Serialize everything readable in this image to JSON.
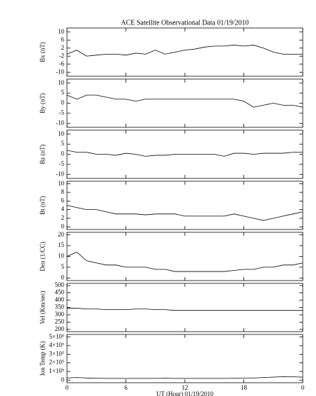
{
  "chart_data": [
    {
      "type": "line",
      "title": "ACE Satellite Observational Data  01/19/2010",
      "ylabel": "Bx (nT)",
      "x": [
        0,
        1,
        2,
        3,
        4,
        5,
        6,
        7,
        8,
        9,
        10,
        11,
        12,
        13,
        14,
        15,
        16,
        17,
        18,
        19,
        20,
        21,
        22,
        23,
        24
      ],
      "series": [
        {
          "color": "#000000",
          "values": [
            -1,
            1,
            -2,
            -1.5,
            -1,
            -1,
            -1.5,
            -0.5,
            -1,
            1,
            -1,
            0,
            1,
            1.5,
            2.5,
            3,
            3,
            3.5,
            3,
            3.5,
            2,
            0,
            -1,
            -1,
            -1
          ]
        }
      ],
      "xlim": [
        0,
        24
      ],
      "ylim": [
        -12,
        12
      ],
      "yticks": [
        10,
        6,
        2,
        -2,
        -6,
        -10
      ]
    },
    {
      "type": "line",
      "ylabel": "By (nT)",
      "x": [
        0,
        1,
        2,
        3,
        4,
        5,
        6,
        7,
        8,
        9,
        10,
        11,
        12,
        13,
        14,
        15,
        16,
        17,
        18,
        19,
        20,
        21,
        22,
        23,
        24
      ],
      "series": [
        {
          "color": "#000000",
          "values": [
            4,
            2,
            4,
            4,
            3,
            2,
            2,
            1,
            2,
            2,
            2,
            2,
            2,
            2,
            2,
            2,
            2,
            2,
            1,
            -2,
            -1,
            0,
            -1,
            -1,
            -2
          ]
        }
      ],
      "xlim": [
        0,
        24
      ],
      "ylim": [
        -12,
        12
      ],
      "yticks": [
        10,
        5,
        0,
        -5,
        -10
      ]
    },
    {
      "type": "line",
      "ylabel": "Bz (nT)",
      "x": [
        0,
        1,
        2,
        3,
        4,
        5,
        6,
        7,
        8,
        9,
        10,
        11,
        12,
        13,
        14,
        15,
        16,
        17,
        18,
        19,
        20,
        21,
        22,
        23,
        24
      ],
      "series": [
        {
          "color": "#000000",
          "values": [
            2,
            1,
            1,
            0,
            0,
            -0.5,
            0.5,
            0,
            -1,
            -0.5,
            -0.5,
            0,
            0,
            0,
            0,
            0,
            -1,
            0.5,
            0.5,
            0,
            0.5,
            0.5,
            0.5,
            1,
            1
          ]
        }
      ],
      "xlim": [
        0,
        24
      ],
      "ylim": [
        -12,
        12
      ],
      "yticks": [
        10,
        5,
        0,
        -5,
        -10
      ]
    },
    {
      "type": "line",
      "ylabel": "Bt (nT)",
      "x": [
        0,
        1,
        2,
        3,
        4,
        5,
        6,
        7,
        8,
        9,
        10,
        11,
        12,
        13,
        14,
        15,
        16,
        17,
        18,
        19,
        20,
        21,
        22,
        23,
        24
      ],
      "series": [
        {
          "color": "#000000",
          "values": [
            5,
            4.5,
            4,
            4,
            3.5,
            3,
            3,
            3,
            2.8,
            3,
            3,
            3,
            2.5,
            2.5,
            2.5,
            2.5,
            2.5,
            3,
            2.5,
            2,
            1.5,
            2,
            2.5,
            3,
            3.5
          ]
        }
      ],
      "xlim": [
        0,
        24
      ],
      "ylim": [
        -0.6,
        10.6
      ],
      "yticks": [
        10,
        8,
        6,
        4,
        2,
        0
      ]
    },
    {
      "type": "line",
      "ylabel": "Den (1/CC)",
      "x": [
        0,
        1,
        2,
        3,
        4,
        5,
        6,
        7,
        8,
        9,
        10,
        11,
        12,
        13,
        14,
        15,
        16,
        17,
        18,
        19,
        20,
        21,
        22,
        23,
        24
      ],
      "series": [
        {
          "color": "#000000",
          "values": [
            10,
            12,
            8,
            7,
            6,
            6,
            5,
            5,
            5,
            4,
            4,
            3,
            3,
            3,
            3,
            3,
            3,
            3.5,
            4,
            4,
            5,
            5,
            6,
            6,
            7
          ]
        }
      ],
      "xlim": [
        0,
        24
      ],
      "ylim": [
        -1.2,
        21.2
      ],
      "yticks": [
        20,
        15,
        10,
        5,
        0
      ]
    },
    {
      "type": "line",
      "ylabel": "Vel (Km/sec)",
      "x": [
        0,
        1,
        2,
        3,
        4,
        5,
        6,
        7,
        8,
        9,
        10,
        11,
        12,
        13,
        14,
        15,
        16,
        17,
        18,
        19,
        20,
        21,
        22,
        23,
        24
      ],
      "series": [
        {
          "color": "#000000",
          "values": [
            345,
            345,
            340,
            340,
            335,
            335,
            335,
            340,
            340,
            335,
            335,
            330,
            330,
            330,
            330,
            330,
            330,
            330,
            330,
            330,
            330,
            330,
            330,
            330,
            330
          ]
        }
      ],
      "xlim": [
        0,
        24
      ],
      "ylim": [
        185,
        515
      ],
      "yticks": [
        500,
        450,
        400,
        350,
        300,
        250,
        200
      ]
    },
    {
      "type": "line",
      "ylabel": "Ion Temp (K)",
      "xlabel": "UT (Hour)  01/19/2010",
      "x": [
        0,
        1,
        2,
        3,
        4,
        5,
        6,
        7,
        8,
        9,
        10,
        11,
        12,
        13,
        14,
        15,
        16,
        17,
        18,
        19,
        20,
        21,
        22,
        23,
        24
      ],
      "series": [
        {
          "color": "#000000",
          "values": [
            25000,
            30000,
            25000,
            22000,
            20000,
            20000,
            20000,
            20000,
            20000,
            20000,
            22000,
            20000,
            20000,
            20000,
            20000,
            20000,
            20000,
            22000,
            25000,
            25000,
            30000,
            35000,
            40000,
            38000,
            35000
          ]
        }
      ],
      "xlim": [
        0,
        24
      ],
      "ylim": [
        -30000,
        530000
      ],
      "yticks": [
        {
          "value": 500000,
          "label": "5×10⁵"
        },
        {
          "value": 400000,
          "label": "4×10⁵"
        },
        {
          "value": 300000,
          "label": "3×10⁵"
        },
        {
          "value": 200000,
          "label": "2×10⁵"
        },
        {
          "value": 100000,
          "label": "1×10⁵"
        },
        0
      ],
      "xticks": [
        0,
        6,
        12,
        18,
        {
          "value": 24,
          "label": "0"
        }
      ]
    }
  ]
}
